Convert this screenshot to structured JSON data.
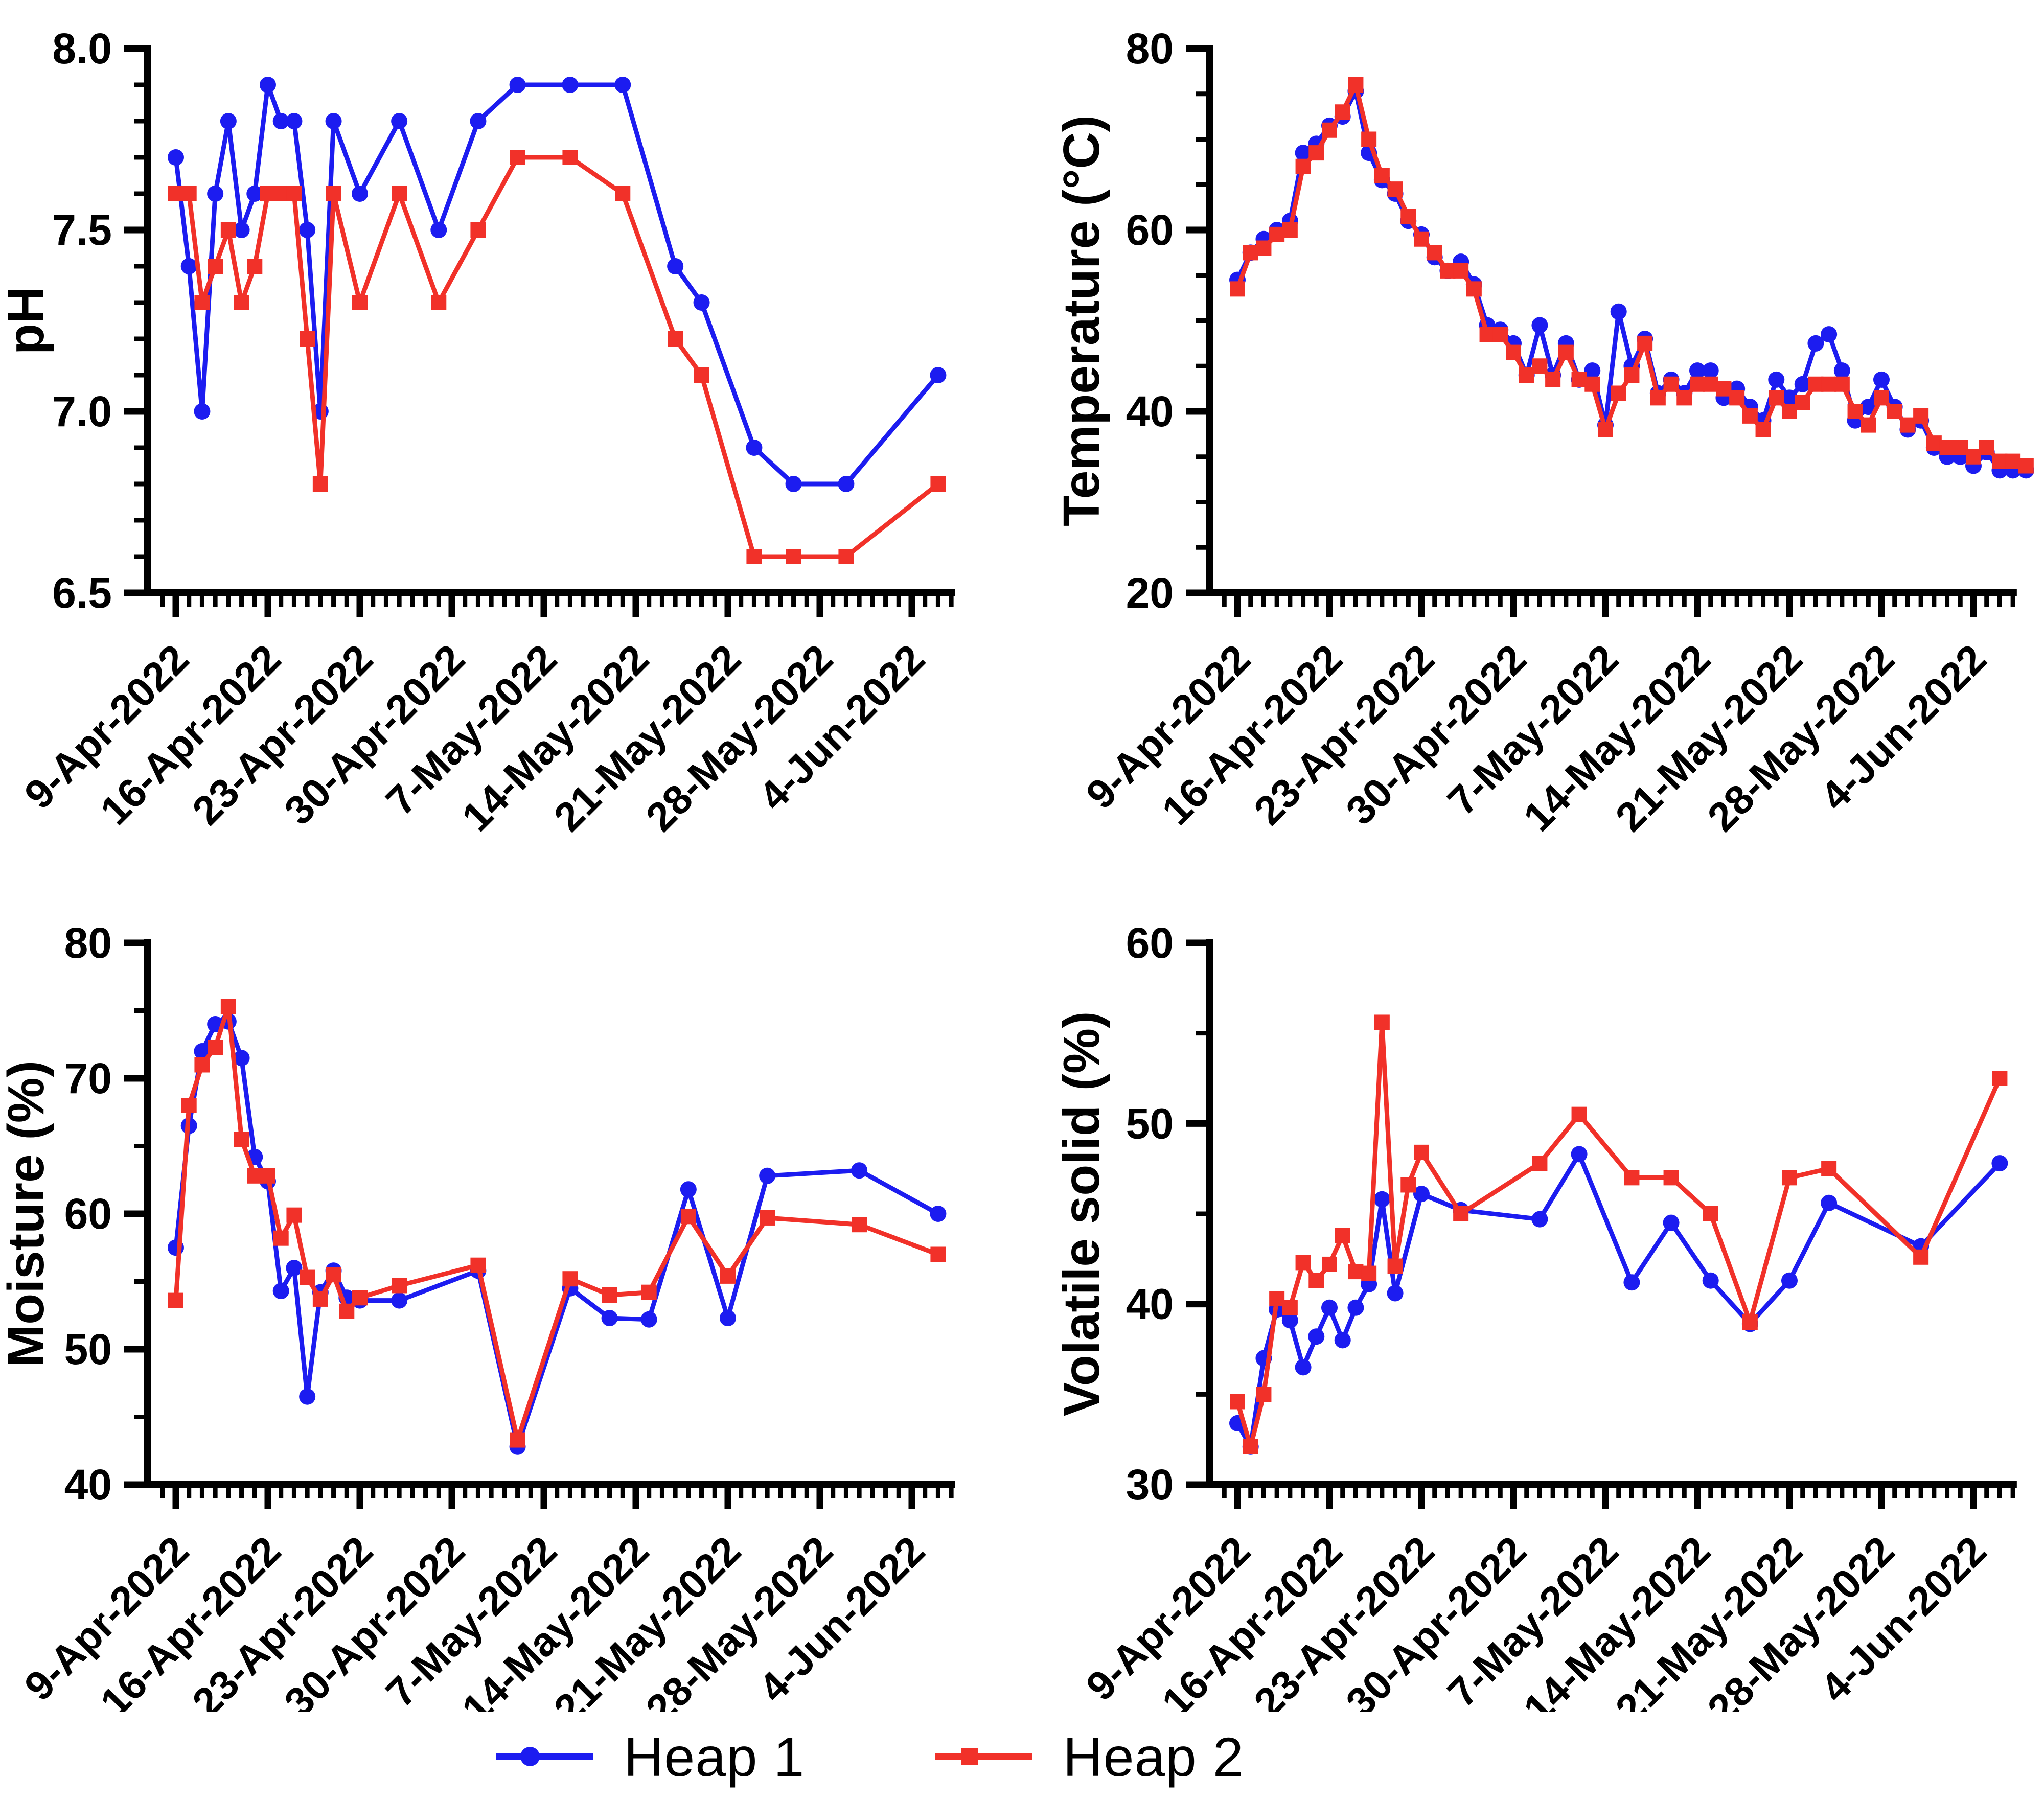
{
  "page": {
    "background": "#ffffff"
  },
  "colors": {
    "heap1": "#1c1cf0",
    "heap2": "#f13129",
    "axis": "#000000",
    "text": "#000000"
  },
  "legend": {
    "items": [
      {
        "label": "Heap 1",
        "marker": "circle",
        "color_key": "heap1"
      },
      {
        "label": "Heap 2",
        "marker": "square",
        "color_key": "heap2"
      }
    ]
  },
  "x_axis": {
    "major_tick_labels": [
      "9-Apr-2022",
      "16-Apr-2022",
      "23-Apr-2022",
      "30-Apr-2022",
      "7-May-2022",
      "14-May-2022",
      "21-May-2022",
      "28-May-2022",
      "4-Jun-2022"
    ],
    "major_tick_days": [
      0,
      7,
      14,
      21,
      28,
      35,
      42,
      49,
      56
    ],
    "minor_tick_interval_days": 1
  },
  "chart_data": [
    {
      "id": "ph",
      "type": "line",
      "title": "",
      "xlabel": "",
      "ylabel": "pH",
      "ylim": [
        6.5,
        8.0
      ],
      "yticks": [
        6.5,
        7.0,
        7.5,
        8.0
      ],
      "ytick_decimals": 1,
      "yminor_step": 0.1,
      "grid": false,
      "series": [
        {
          "name": "Heap 1",
          "color_key": "heap1",
          "marker": "circle",
          "x": [
            0,
            1,
            2,
            3,
            4,
            5,
            6,
            7,
            8,
            9,
            10,
            11,
            12,
            14,
            17,
            20,
            23,
            26,
            30,
            34,
            38,
            40,
            44,
            47,
            51,
            58
          ],
          "y": [
            7.7,
            7.4,
            7.0,
            7.6,
            7.8,
            7.5,
            7.6,
            7.9,
            7.8,
            7.8,
            7.5,
            7.0,
            7.8,
            7.6,
            7.8,
            7.5,
            7.8,
            7.9,
            7.9,
            7.9,
            7.4,
            7.3,
            6.9,
            6.8,
            6.8,
            7.1
          ]
        },
        {
          "name": "Heap 2",
          "color_key": "heap2",
          "marker": "square",
          "x": [
            0,
            1,
            2,
            3,
            4,
            5,
            6,
            7,
            8,
            9,
            10,
            11,
            12,
            14,
            17,
            20,
            23,
            26,
            30,
            34,
            38,
            40,
            44,
            47,
            51,
            58
          ],
          "y": [
            7.6,
            7.6,
            7.3,
            7.4,
            7.5,
            7.3,
            7.4,
            7.6,
            7.6,
            7.6,
            7.2,
            6.8,
            7.6,
            7.3,
            7.6,
            7.3,
            7.5,
            7.7,
            7.7,
            7.6,
            7.2,
            7.1,
            6.6,
            6.6,
            6.6,
            6.8
          ]
        }
      ]
    },
    {
      "id": "temperature",
      "type": "line",
      "title": "",
      "xlabel": "",
      "ylabel": "Temperature (°C)",
      "ylim": [
        20,
        80
      ],
      "yticks": [
        20,
        40,
        60,
        80
      ],
      "ytick_decimals": 0,
      "yminor_step": 5,
      "grid": false,
      "series": [
        {
          "name": "Heap 1",
          "color_key": "heap1",
          "marker": "circle",
          "x": [
            0,
            1,
            2,
            3,
            4,
            5,
            6,
            7,
            8,
            9,
            10,
            11,
            12,
            13,
            14,
            15,
            16,
            17,
            18,
            19,
            20,
            21,
            22,
            23,
            24,
            25,
            26,
            27,
            28,
            29,
            30,
            31,
            32,
            33,
            34,
            35,
            36,
            37,
            38,
            39,
            40,
            41,
            42,
            43,
            44,
            45,
            46,
            47,
            48,
            49,
            50,
            51,
            52,
            53,
            54,
            55,
            56,
            57,
            58,
            59,
            60
          ],
          "y": [
            54.5,
            57.5,
            59,
            60,
            61,
            68.5,
            69.5,
            71.5,
            72.5,
            75.3,
            68.5,
            65.5,
            64,
            61,
            59.5,
            57,
            55.5,
            56.5,
            54,
            49.5,
            49,
            47.5,
            44,
            49.5,
            44,
            47.5,
            43.5,
            44.5,
            38.5,
            51,
            45,
            48,
            42,
            43.5,
            42,
            44.5,
            44.5,
            41.5,
            42.5,
            40.5,
            39,
            43.5,
            41.5,
            43,
            47.5,
            48.5,
            44.5,
            39,
            40.5,
            43.5,
            40.5,
            38,
            39,
            36,
            35,
            35,
            34,
            35.5,
            33.5,
            33.5,
            33.5
          ]
        },
        {
          "name": "Heap 2",
          "color_key": "heap2",
          "marker": "square",
          "x": [
            0,
            1,
            2,
            3,
            4,
            5,
            6,
            7,
            8,
            9,
            10,
            11,
            12,
            13,
            14,
            15,
            16,
            17,
            18,
            19,
            20,
            21,
            22,
            23,
            24,
            25,
            26,
            27,
            28,
            29,
            30,
            31,
            32,
            33,
            34,
            35,
            36,
            37,
            38,
            39,
            40,
            41,
            42,
            43,
            44,
            45,
            46,
            47,
            48,
            49,
            50,
            51,
            52,
            53,
            54,
            55,
            56,
            57,
            58,
            59,
            60
          ],
          "y": [
            53.5,
            57.5,
            58,
            59.5,
            60,
            67,
            68.5,
            71,
            73,
            76,
            70,
            66,
            64.5,
            61.5,
            59,
            57.5,
            55.5,
            55.5,
            53.5,
            48.5,
            48.5,
            46.5,
            44,
            45,
            43.5,
            46.5,
            43.5,
            43,
            38,
            42,
            44,
            47.5,
            41.5,
            43,
            41.5,
            43,
            43,
            42.5,
            41.5,
            39.5,
            38,
            41.5,
            40,
            41,
            43,
            43,
            43,
            40,
            38.5,
            41.5,
            40,
            38.5,
            39.5,
            36.5,
            36,
            36,
            35,
            36,
            34.5,
            34.5,
            34
          ]
        }
      ]
    },
    {
      "id": "moisture",
      "type": "line",
      "title": "",
      "xlabel": "",
      "ylabel": "Moisture (%)",
      "ylim": [
        40,
        80
      ],
      "yticks": [
        40,
        50,
        60,
        70,
        80
      ],
      "ytick_decimals": 0,
      "yminor_step": 5,
      "grid": false,
      "series": [
        {
          "name": "Heap 1",
          "color_key": "heap1",
          "marker": "circle",
          "x": [
            0,
            1,
            2,
            3,
            4,
            5,
            6,
            7,
            8,
            9,
            10,
            11,
            12,
            13,
            14,
            17,
            23,
            26,
            30,
            33,
            36,
            39,
            42,
            45,
            52,
            58
          ],
          "y": [
            57.5,
            66.5,
            72,
            74,
            74.2,
            71.5,
            64.2,
            62.4,
            54.3,
            56,
            46.5,
            54.2,
            55.8,
            53.8,
            53.6,
            53.6,
            55.8,
            42.8,
            54.5,
            52.3,
            52.2,
            61.8,
            52.3,
            62.8,
            63.2,
            60
          ]
        },
        {
          "name": "Heap 2",
          "color_key": "heap2",
          "marker": "square",
          "x": [
            0,
            1,
            2,
            3,
            4,
            5,
            6,
            7,
            8,
            9,
            10,
            11,
            12,
            13,
            14,
            17,
            23,
            26,
            30,
            33,
            36,
            39,
            42,
            45,
            52,
            58
          ],
          "y": [
            53.6,
            68,
            71,
            72.3,
            75.3,
            65.5,
            62.8,
            62.8,
            58.2,
            59.9,
            55.3,
            53.7,
            55.5,
            52.8,
            53.8,
            54.7,
            56.2,
            43.3,
            55.2,
            54,
            54.2,
            59.8,
            55.4,
            59.7,
            59.2,
            57
          ]
        }
      ]
    },
    {
      "id": "volatile_solid",
      "type": "line",
      "title": "",
      "xlabel": "",
      "ylabel": "Volatile solid (%)",
      "ylim": [
        30,
        60
      ],
      "yticks": [
        30,
        40,
        50,
        60
      ],
      "ytick_decimals": 0,
      "yminor_step": 5,
      "grid": false,
      "series": [
        {
          "name": "Heap 1",
          "color_key": "heap1",
          "marker": "circle",
          "x": [
            0,
            1,
            2,
            3,
            4,
            5,
            6,
            7,
            8,
            9,
            10,
            11,
            12,
            14,
            17,
            23,
            26,
            30,
            33,
            36,
            39,
            42,
            45,
            52,
            58
          ],
          "y": [
            33.4,
            32.1,
            37,
            39.7,
            39.1,
            36.5,
            38.2,
            39.8,
            38,
            39.8,
            41.1,
            45.8,
            40.6,
            46.1,
            45.2,
            44.7,
            48.3,
            41.2,
            44.5,
            41.3,
            38.9,
            41.3,
            45.6,
            43.2,
            47.8
          ]
        },
        {
          "name": "Heap 2",
          "color_key": "heap2",
          "marker": "square",
          "x": [
            0,
            1,
            2,
            3,
            4,
            5,
            6,
            7,
            8,
            9,
            10,
            11,
            12,
            13,
            14,
            17,
            23,
            26,
            30,
            33,
            36,
            39,
            42,
            45,
            52,
            58
          ],
          "y": [
            34.6,
            32.1,
            35,
            40.3,
            39.8,
            42.3,
            41.3,
            42.2,
            43.8,
            41.8,
            41.7,
            55.6,
            42.1,
            46.6,
            48.4,
            45,
            47.8,
            50.5,
            47,
            47,
            45,
            39,
            47,
            47.5,
            42.6,
            52.5
          ]
        }
      ]
    }
  ]
}
